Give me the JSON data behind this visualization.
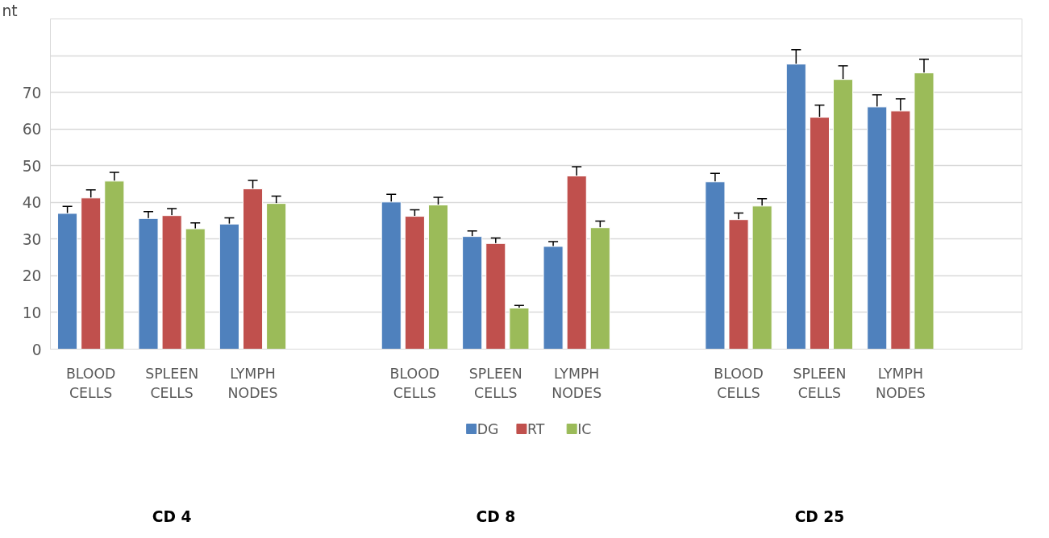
{
  "chart_data": {
    "type": "bar",
    "categories": [
      "BLOOD CELLS",
      "SPLEEN CELLS",
      "LYMPH NODES",
      null,
      "BLOOD CELLS",
      "SPLEEN CELLS",
      "LYMPH NODES",
      null,
      "BLOOD CELLS",
      "SPLEEN CELLS",
      "LYMPH NODES",
      null
    ],
    "series": [
      {
        "name": "DG",
        "color": "#4f81bd",
        "values": [
          37.0,
          35.6,
          34.1,
          null,
          40.1,
          30.7,
          28.0,
          null,
          45.6,
          77.7,
          66.0,
          null
        ],
        "errors": [
          1.9,
          1.9,
          1.7,
          null,
          2.1,
          1.5,
          1.3,
          null,
          2.3,
          3.9,
          3.3,
          null
        ]
      },
      {
        "name": "RT",
        "color": "#c0504d",
        "values": [
          41.2,
          36.4,
          43.7,
          null,
          36.2,
          28.8,
          47.2,
          null,
          35.3,
          63.2,
          64.9,
          null
        ],
        "errors": [
          2.2,
          1.9,
          2.3,
          null,
          1.8,
          1.5,
          2.5,
          null,
          1.8,
          3.3,
          3.3,
          null
        ]
      },
      {
        "name": "IC",
        "color": "#9bbb59",
        "values": [
          45.8,
          32.8,
          39.7,
          null,
          39.3,
          11.2,
          33.1,
          null,
          39.0,
          73.5,
          75.3,
          null
        ],
        "errors": [
          2.4,
          1.6,
          2.0,
          null,
          2.1,
          0.7,
          1.8,
          null,
          2.0,
          3.7,
          3.7,
          null
        ]
      }
    ],
    "ylim": [
      0,
      90
    ],
    "yticks": [
      0,
      10,
      20,
      30,
      40,
      50,
      60,
      70,
      {
        "value": 80,
        "label": null
      },
      {
        "value": 90,
        "label": null
      }
    ],
    "grid": "y",
    "legend": "bottom",
    "annotations": [
      "nt",
      "CD 4",
      "CD 8",
      "CD 25"
    ]
  }
}
